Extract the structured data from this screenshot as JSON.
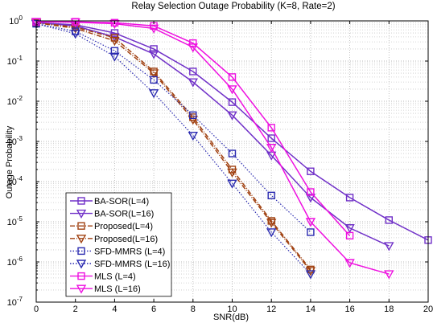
{
  "chart_data": {
    "type": "line",
    "title": "Relay Selection Outage Probability (K=8, Rate=2)",
    "xlabel": "SNR(dB)",
    "ylabel": "Outage Probability",
    "xlim": [
      0,
      20
    ],
    "ylim": [
      1e-07,
      1
    ],
    "yscale": "log",
    "grid": true,
    "legend_position": "bottom-left",
    "x_ticks": [
      "0",
      "2",
      "4",
      "6",
      "8",
      "10",
      "12",
      "14",
      "16",
      "18",
      "20"
    ],
    "y_ticks": [
      {
        "base": "10",
        "exp": "0"
      },
      {
        "base": "10",
        "exp": "-1"
      },
      {
        "base": "10",
        "exp": "-2"
      },
      {
        "base": "10",
        "exp": "-3"
      },
      {
        "base": "10",
        "exp": "-4"
      },
      {
        "base": "10",
        "exp": "-5"
      },
      {
        "base": "10",
        "exp": "-6"
      },
      {
        "base": "10",
        "exp": "-7"
      }
    ],
    "series": [
      {
        "name": "BA-SOR(L=4)",
        "color": "#7030c8",
        "line": "solid",
        "marker": "square",
        "x": [
          0,
          2,
          4,
          6,
          8,
          10,
          12,
          14,
          16,
          18,
          20
        ],
        "y": [
          0.9,
          0.8,
          0.5,
          0.2,
          0.055,
          0.0095,
          0.0012,
          0.00018,
          4e-05,
          1.1e-05,
          3.5e-06
        ]
      },
      {
        "name": "BA-SOR(L=16)",
        "color": "#7030c8",
        "line": "solid",
        "marker": "triangle-down",
        "x": [
          0,
          2,
          4,
          6,
          8,
          10,
          12,
          14,
          16,
          18
        ],
        "y": [
          0.9,
          0.75,
          0.4,
          0.15,
          0.03,
          0.0045,
          0.00045,
          4e-05,
          7e-06,
          2.5e-06
        ]
      },
      {
        "name": "Proposed(L=4)",
        "color": "#a04010",
        "line": "dashdot",
        "marker": "square",
        "x": [
          0,
          2,
          4,
          6,
          8,
          10,
          12,
          14
        ],
        "y": [
          0.9,
          0.7,
          0.38,
          0.055,
          0.004,
          0.0002,
          1.05e-05,
          6.5e-07
        ]
      },
      {
        "name": "Proposed(L=16)",
        "color": "#a04010",
        "line": "dashdot",
        "marker": "triangle-down",
        "x": [
          0,
          2,
          4,
          6,
          8,
          10,
          12,
          14
        ],
        "y": [
          0.9,
          0.65,
          0.32,
          0.05,
          0.0035,
          0.00017,
          9.5e-06,
          6e-07
        ]
      },
      {
        "name": "SFD-MMRS (L=4)",
        "color": "#2a2ab0",
        "line": "dotted",
        "marker": "square",
        "x": [
          0,
          2,
          4,
          6,
          8,
          10,
          12,
          14
        ],
        "y": [
          0.85,
          0.55,
          0.18,
          0.034,
          0.0045,
          0.0005,
          4.5e-05,
          5.5e-06
        ]
      },
      {
        "name": "SFD-MMRS (L=16)",
        "color": "#2a2ab0",
        "line": "dotted",
        "marker": "triangle-down",
        "x": [
          0,
          2,
          4,
          6,
          8,
          10,
          12,
          14
        ],
        "y": [
          0.85,
          0.48,
          0.13,
          0.016,
          0.0014,
          9e-05,
          5.5e-06,
          5e-07
        ]
      },
      {
        "name": "MLS (L=4)",
        "color": "#ee10e0",
        "line": "solid",
        "marker": "square",
        "x": [
          0,
          2,
          4,
          6,
          8,
          10,
          12,
          14,
          16
        ],
        "y": [
          0.95,
          0.95,
          0.9,
          0.75,
          0.28,
          0.04,
          0.0022,
          5.5e-05,
          4.5e-06
        ]
      },
      {
        "name": "MLS (L=16)",
        "color": "#ee10e0",
        "line": "solid",
        "marker": "triangle-down",
        "x": [
          0,
          2,
          4,
          6,
          8,
          10,
          12,
          14,
          16,
          18
        ],
        "y": [
          0.95,
          0.93,
          0.85,
          0.65,
          0.22,
          0.02,
          0.0007,
          1e-05,
          9.5e-07,
          5e-07
        ]
      }
    ]
  }
}
